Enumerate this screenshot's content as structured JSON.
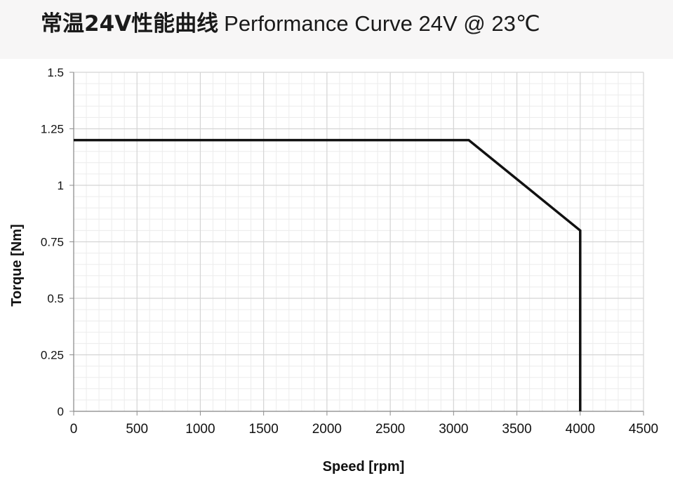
{
  "header": {
    "title_cn": "常温24V性能曲线",
    "title_en": "Performance Curve 24V @ 23℃"
  },
  "chart_data": {
    "type": "line",
    "title": "常温24V性能曲线 Performance Curve 24V @ 23℃",
    "xlabel": "Speed [rpm]",
    "ylabel": "Torque [Nm]",
    "xlim": [
      0,
      4500
    ],
    "ylim": [
      0,
      1.5
    ],
    "x_ticks": [
      "0",
      "500",
      "1000",
      "1500",
      "2000",
      "2500",
      "3000",
      "3500",
      "4000",
      "4500"
    ],
    "y_ticks": [
      "0",
      "0.25",
      "0.5",
      "0.75",
      "1",
      "1.25",
      "1.5"
    ],
    "grid": true,
    "minor_grid": true,
    "legend": "none",
    "series": [
      {
        "color": "#111111",
        "points": [
          [
            0,
            1.2
          ],
          [
            3120,
            1.2
          ],
          [
            4000,
            0.8
          ],
          [
            4000,
            0
          ]
        ]
      }
    ]
  },
  "colors": {
    "major_grid": "#d4d4d4",
    "minor_grid": "#ececec",
    "axis": "#8c8c8c",
    "line": "#111111",
    "header_band": "#f7f6f6"
  }
}
